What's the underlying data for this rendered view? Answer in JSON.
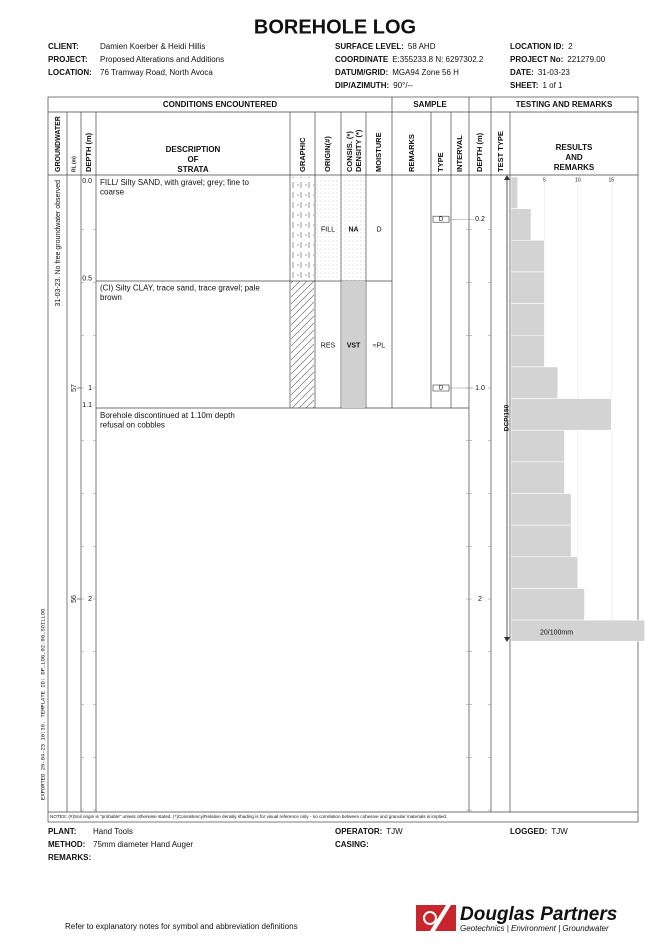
{
  "title": "BOREHOLE LOG",
  "header": {
    "left": [
      {
        "label": "CLIENT:",
        "value": "Damien Koerber & Heidi Hillis"
      },
      {
        "label": "PROJECT:",
        "value": "Proposed Alterations and Additions"
      },
      {
        "label": "LOCATION:",
        "value": "76 Tramway Road, North Avoca"
      }
    ],
    "middle": [
      {
        "label": "SURFACE LEVEL:",
        "value": "58 AHD"
      },
      {
        "label": "COORDINATE",
        "value": "E:355233.8 N: 6297302.2"
      },
      {
        "label": "DATUM/GRID:",
        "value": "MGA94 Zone 56 H"
      },
      {
        "label": "DIP/AZIMUTH:",
        "value": "90°/--"
      }
    ],
    "right": [
      {
        "label": "LOCATION ID:",
        "value": "2"
      },
      {
        "label": "PROJECT No:",
        "value": "221279.00"
      },
      {
        "label": "DATE:",
        "value": "31-03-23"
      },
      {
        "label": "SHEET:",
        "value": "1 of 1"
      }
    ]
  },
  "sections": [
    "CONDITIONS ENCOUNTERED",
    "SAMPLE",
    "TESTING AND REMARKS"
  ],
  "columns": {
    "groundwater": "GROUNDWATER",
    "rl": "RL (m)",
    "depth": "DEPTH (m)",
    "description": [
      "DESCRIPTION",
      "OF",
      "STRATA"
    ],
    "graphic": "GRAPHIC",
    "origin": "ORIGIN(#)",
    "consistency": [
      "CONSIS. (*)",
      "DENSITY (*)"
    ],
    "moisture": "MOISTURE",
    "remarks": "REMARKS",
    "type": "TYPE",
    "interval": "INTERVAL",
    "sample_depth": "DEPTH (m)",
    "test_type": "TEST TYPE",
    "results": [
      "RESULTS",
      "AND",
      "REMARKS"
    ]
  },
  "groundwater_note": "31-03-23. No free groundwater observed",
  "depth_scale": [
    "1",
    "2"
  ],
  "rl_scale": [
    "57",
    "56"
  ],
  "strata": [
    {
      "top": "0.0",
      "description": [
        "FILL/ Silty SAND, with gravel; grey; fine to",
        "coarse"
      ],
      "origin": "FILL",
      "consistency": "NA",
      "moisture": "D"
    },
    {
      "top": "0.5",
      "description": [
        "(CI) Silty CLAY, trace sand, trace gravel; pale",
        "brown"
      ],
      "origin": "RES",
      "consistency": "VST",
      "moisture": "≈PL"
    }
  ],
  "end": {
    "depth": "1.1",
    "description": [
      "Borehole discontinued at 1.10m depth",
      "refusal on cobbles"
    ]
  },
  "samples": [
    {
      "type": "D",
      "depth": "0.2"
    },
    {
      "type": "D",
      "depth": "1.0"
    }
  ],
  "sample_depth_scale": [
    "2"
  ],
  "test_type": "DCP/150",
  "chart_data": {
    "type": "bar",
    "values": [
      1,
      3,
      5,
      5,
      5,
      5,
      7,
      15,
      8,
      8,
      9,
      9,
      10,
      11,
      20
    ],
    "value_labels": [
      null,
      null,
      null,
      null,
      null,
      null,
      null,
      null,
      null,
      null,
      null,
      null,
      null,
      null,
      "20/100mm"
    ],
    "xlim": [
      0,
      19
    ],
    "xticks": [
      5,
      10,
      15
    ],
    "color": "#d3d3d3",
    "grid": true
  },
  "notes": "NOTES: (#)Soil origin is \"probable\" unless otherwise stated. (*)Consistency/Relative density shading is for visual reference only - no correlation between cohesive and granular materials is implied.",
  "footer": {
    "left": [
      {
        "label": "PLANT:",
        "value": "Hand Tools"
      },
      {
        "label": "METHOD:",
        "value": "75mm diameter Hand Auger"
      },
      {
        "label": "REMARKS:"
      }
    ],
    "middle": [
      {
        "label": "OPERATOR:",
        "value": "TJW"
      },
      {
        "label": "CASING:"
      }
    ],
    "right": [
      {
        "label": "LOGGED:",
        "value": "TJW"
      }
    ]
  },
  "reference": "Refer to explanatory notes for symbol and abbreviation definitions",
  "logo": {
    "name": "Douglas Partners",
    "tagline": "Geotechnics | Environment | Groundwater"
  },
  "export_note": "EXPORTED 26-04-23 10:39. TEMPLATE ID: DP_LOG_02.00_SOILLOG"
}
